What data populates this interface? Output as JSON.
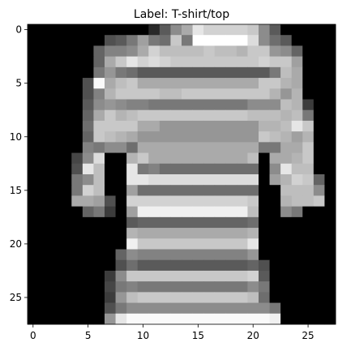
{
  "chart_data": {
    "type": "heatmap",
    "title": "Label: T-shirt/top",
    "colormap": "gray",
    "value_range": [
      0,
      255
    ],
    "x_ticks": [
      0,
      5,
      10,
      15,
      20,
      25
    ],
    "y_ticks": [
      0,
      5,
      10,
      15,
      20,
      25
    ],
    "rows": 28,
    "cols": 28,
    "pixels": [
      [
        0,
        0,
        0,
        0,
        0,
        0,
        0,
        0,
        0,
        0,
        0,
        40,
        90,
        140,
        170,
        230,
        210,
        210,
        210,
        210,
        200,
        140,
        90,
        0,
        0,
        0,
        0,
        0
      ],
      [
        0,
        0,
        0,
        0,
        0,
        0,
        0,
        80,
        90,
        120,
        160,
        120,
        110,
        200,
        120,
        255,
        255,
        255,
        255,
        255,
        220,
        140,
        110,
        90,
        0,
        0,
        0,
        0
      ],
      [
        0,
        0,
        0,
        0,
        0,
        0,
        100,
        130,
        130,
        140,
        170,
        210,
        190,
        190,
        190,
        190,
        200,
        190,
        190,
        180,
        200,
        200,
        150,
        140,
        100,
        0,
        0,
        0
      ],
      [
        0,
        0,
        0,
        0,
        0,
        0,
        100,
        170,
        200,
        230,
        210,
        220,
        210,
        200,
        200,
        200,
        200,
        200,
        200,
        200,
        200,
        210,
        200,
        200,
        160,
        0,
        0,
        0
      ],
      [
        0,
        0,
        0,
        0,
        0,
        0,
        120,
        150,
        120,
        110,
        90,
        90,
        90,
        90,
        90,
        90,
        90,
        90,
        90,
        90,
        90,
        90,
        120,
        190,
        170,
        0,
        0,
        0
      ],
      [
        0,
        0,
        0,
        0,
        0,
        80,
        250,
        170,
        190,
        200,
        170,
        170,
        170,
        170,
        170,
        170,
        170,
        170,
        170,
        170,
        170,
        200,
        200,
        180,
        170,
        0,
        0,
        0
      ],
      [
        0,
        0,
        0,
        0,
        0,
        80,
        130,
        180,
        200,
        200,
        200,
        200,
        190,
        190,
        200,
        200,
        200,
        200,
        200,
        200,
        200,
        200,
        180,
        150,
        180,
        0,
        0,
        0
      ],
      [
        0,
        0,
        0,
        0,
        0,
        90,
        140,
        150,
        140,
        130,
        130,
        120,
        120,
        120,
        120,
        120,
        120,
        120,
        120,
        120,
        140,
        140,
        140,
        190,
        180,
        60,
        0,
        0
      ],
      [
        0,
        0,
        0,
        0,
        0,
        100,
        170,
        200,
        180,
        190,
        200,
        200,
        200,
        200,
        200,
        200,
        200,
        200,
        200,
        200,
        190,
        190,
        190,
        180,
        190,
        120,
        0,
        0
      ],
      [
        0,
        0,
        0,
        0,
        0,
        110,
        200,
        200,
        200,
        200,
        170,
        170,
        150,
        150,
        150,
        150,
        150,
        150,
        150,
        150,
        150,
        180,
        180,
        190,
        230,
        200,
        0,
        0
      ],
      [
        0,
        0,
        0,
        0,
        0,
        100,
        200,
        190,
        180,
        170,
        150,
        150,
        150,
        150,
        150,
        150,
        150,
        150,
        150,
        150,
        150,
        200,
        190,
        180,
        160,
        180,
        0,
        0
      ],
      [
        0,
        0,
        0,
        0,
        0,
        130,
        120,
        140,
        140,
        110,
        170,
        170,
        170,
        170,
        170,
        170,
        170,
        170,
        170,
        170,
        170,
        120,
        120,
        170,
        170,
        200,
        0,
        0
      ],
      [
        0,
        0,
        0,
        0,
        70,
        140,
        220,
        0,
        0,
        180,
        200,
        170,
        170,
        170,
        170,
        170,
        170,
        170,
        170,
        170,
        190,
        0,
        170,
        170,
        180,
        200,
        0,
        0
      ],
      [
        0,
        0,
        0,
        0,
        80,
        230,
        190,
        0,
        0,
        230,
        120,
        130,
        110,
        110,
        110,
        110,
        110,
        110,
        110,
        110,
        110,
        0,
        140,
        230,
        190,
        190,
        0,
        0
      ],
      [
        0,
        0,
        0,
        0,
        120,
        140,
        190,
        0,
        0,
        230,
        230,
        220,
        220,
        220,
        220,
        220,
        220,
        220,
        220,
        220,
        220,
        0,
        160,
        180,
        210,
        200,
        100,
        0
      ],
      [
        0,
        0,
        0,
        0,
        120,
        210,
        190,
        0,
        0,
        160,
        110,
        110,
        110,
        110,
        110,
        110,
        110,
        110,
        110,
        110,
        110,
        0,
        0,
        190,
        190,
        190,
        140,
        0
      ],
      [
        0,
        0,
        0,
        0,
        170,
        170,
        160,
        80,
        0,
        210,
        210,
        210,
        210,
        210,
        210,
        210,
        210,
        210,
        210,
        210,
        200,
        0,
        0,
        180,
        190,
        190,
        200,
        0
      ],
      [
        0,
        0,
        0,
        0,
        0,
        100,
        120,
        60,
        0,
        160,
        240,
        240,
        240,
        240,
        240,
        240,
        240,
        240,
        240,
        240,
        190,
        0,
        0,
        140,
        120,
        0,
        0,
        0
      ],
      [
        0,
        0,
        0,
        0,
        0,
        0,
        0,
        0,
        0,
        90,
        100,
        100,
        100,
        100,
        100,
        100,
        100,
        100,
        100,
        100,
        110,
        0,
        0,
        0,
        0,
        0,
        0,
        0
      ],
      [
        0,
        0,
        0,
        0,
        0,
        0,
        0,
        0,
        0,
        180,
        170,
        170,
        170,
        170,
        170,
        170,
        170,
        170,
        170,
        170,
        180,
        0,
        0,
        0,
        0,
        0,
        0,
        0
      ],
      [
        0,
        0,
        0,
        0,
        0,
        0,
        0,
        0,
        0,
        240,
        200,
        200,
        200,
        200,
        200,
        200,
        200,
        200,
        200,
        200,
        230,
        0,
        0,
        0,
        0,
        0,
        0,
        0
      ],
      [
        0,
        0,
        0,
        0,
        0,
        0,
        0,
        0,
        100,
        140,
        130,
        130,
        130,
        130,
        130,
        130,
        130,
        130,
        130,
        130,
        150,
        0,
        0,
        0,
        0,
        0,
        0,
        0
      ],
      [
        0,
        0,
        0,
        0,
        0,
        0,
        0,
        0,
        80,
        110,
        90,
        90,
        90,
        90,
        90,
        90,
        90,
        90,
        90,
        90,
        100,
        80,
        0,
        0,
        0,
        0,
        0,
        0
      ],
      [
        0,
        0,
        0,
        0,
        0,
        0,
        0,
        60,
        140,
        200,
        200,
        200,
        200,
        200,
        200,
        200,
        200,
        200,
        200,
        200,
        210,
        90,
        0,
        0,
        0,
        0,
        0,
        0
      ],
      [
        0,
        0,
        0,
        0,
        0,
        0,
        0,
        70,
        120,
        130,
        120,
        120,
        120,
        120,
        120,
        120,
        120,
        120,
        120,
        120,
        140,
        120,
        0,
        0,
        0,
        0,
        0,
        0
      ],
      [
        0,
        0,
        0,
        0,
        0,
        0,
        0,
        60,
        150,
        190,
        200,
        200,
        200,
        200,
        200,
        200,
        200,
        200,
        200,
        200,
        190,
        110,
        0,
        0,
        0,
        0,
        0,
        0
      ],
      [
        0,
        0,
        0,
        0,
        0,
        0,
        0,
        80,
        120,
        140,
        140,
        140,
        140,
        140,
        140,
        140,
        140,
        140,
        140,
        140,
        140,
        140,
        120,
        0,
        0,
        0,
        0,
        0
      ],
      [
        0,
        0,
        0,
        0,
        0,
        0,
        0,
        150,
        230,
        250,
        250,
        250,
        250,
        250,
        250,
        250,
        250,
        250,
        250,
        250,
        250,
        250,
        240,
        0,
        0,
        0,
        0,
        0
      ]
    ]
  }
}
